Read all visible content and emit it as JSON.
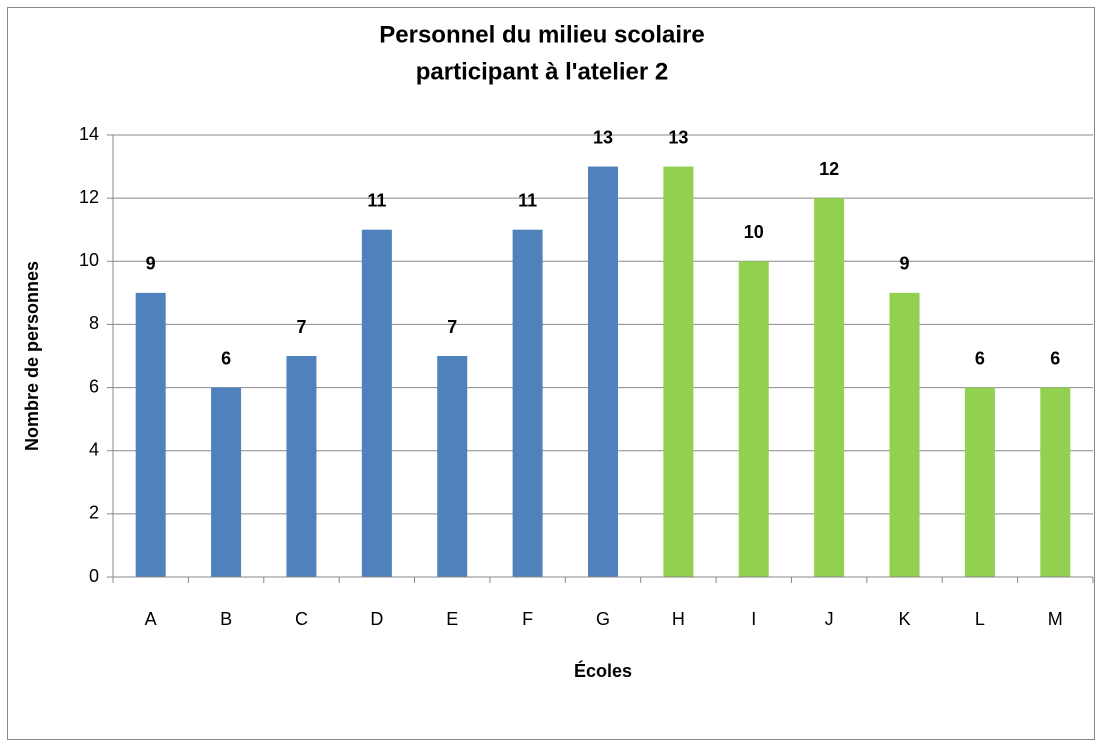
{
  "chart_data": {
    "type": "bar",
    "title": [
      "Personnel du milieu scolaire",
      "participant à l'atelier  2"
    ],
    "xlabel": "Écoles",
    "ylabel": "Nombre de personnes",
    "categories": [
      "A",
      "B",
      "C",
      "D",
      "E",
      "F",
      "G",
      "H",
      "I",
      "J",
      "K",
      "L",
      "M"
    ],
    "values": [
      9,
      6,
      7,
      11,
      7,
      11,
      13,
      13,
      10,
      12,
      9,
      6,
      6
    ],
    "colors": [
      "#4f81bd",
      "#4f81bd",
      "#4f81bd",
      "#4f81bd",
      "#4f81bd",
      "#4f81bd",
      "#4f81bd",
      "#92d050",
      "#92d050",
      "#92d050",
      "#92d050",
      "#92d050",
      "#92d050"
    ],
    "ylim": [
      0,
      14
    ],
    "yticks": [
      0,
      2,
      4,
      6,
      8,
      10,
      12,
      14
    ],
    "grid": true
  }
}
